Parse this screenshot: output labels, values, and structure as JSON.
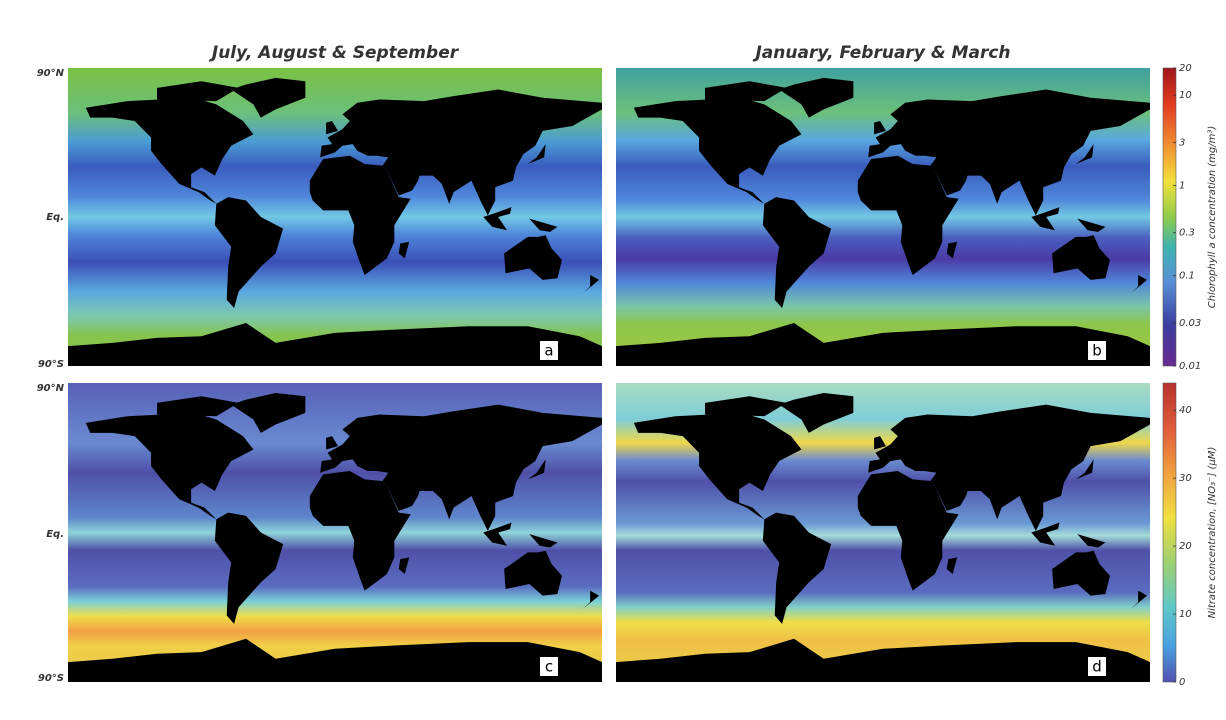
{
  "columns": [
    "July, August & September",
    "January, February & March"
  ],
  "latitude_labels": [
    "90°N",
    "Eq.",
    "90°S"
  ],
  "panels": [
    "a",
    "b",
    "c",
    "d"
  ],
  "colorbars": [
    {
      "label": "Chlorophyll a concentration (mg/m³)",
      "scale": "log",
      "lim": [
        0.01,
        20
      ],
      "ticks": [
        0.01,
        0.03,
        0.1,
        0.3,
        1,
        3,
        10,
        20
      ]
    },
    {
      "label": "Nitrate concentration, [NO₃⁻] (μM)",
      "scale": "linear",
      "lim": [
        0,
        44
      ],
      "ticks": [
        0,
        10,
        20,
        30,
        40
      ]
    }
  ]
}
